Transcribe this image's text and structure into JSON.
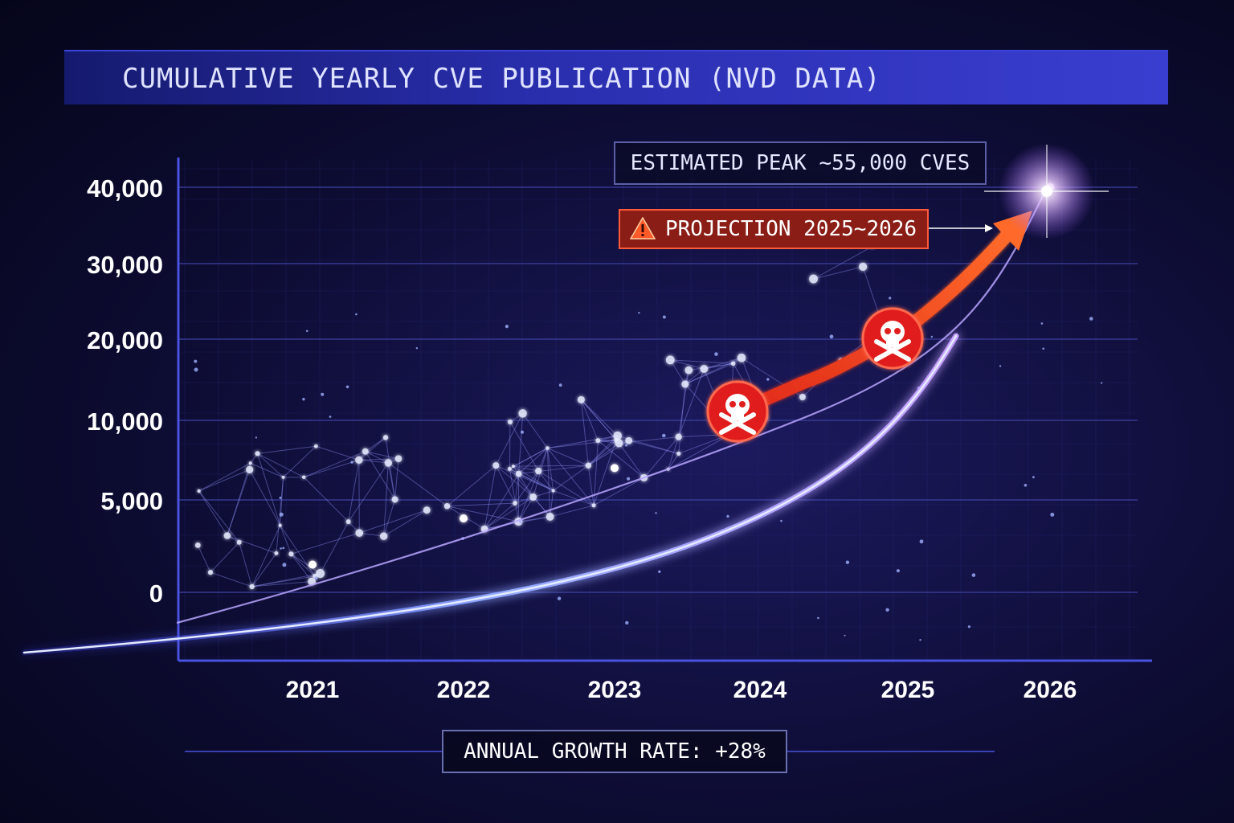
{
  "chart_data": {
    "type": "line",
    "title": "CUMULATIVE YEARLY CVE PUBLICATION (NVD DATA)",
    "xlabel": "",
    "ylabel": "",
    "categories": [
      "2021",
      "2022",
      "2023",
      "2024",
      "2025",
      "2026"
    ],
    "y_ticks": [
      "0",
      "5,000",
      "10,000",
      "20,000",
      "30,000",
      "40,000"
    ],
    "series": [
      {
        "values": [
          1500,
          4000,
          7000,
          11000,
          20000,
          40000
        ]
      }
    ],
    "projection_markers": [
      "2024",
      "2025"
    ],
    "annotations": {
      "peak": "ESTIMATED PEAK ~55,000 CVES",
      "projection": "PROJECTION 2025~2026",
      "growth": "ANNUAL GROWTH RATE: +28%"
    },
    "grid": true,
    "legend": "none",
    "colors": {
      "projection_arrow": "#ff3a1a",
      "curve_glow": "#8a7cff",
      "marker": "#e01e1e",
      "grid": "#3a3e9a"
    }
  }
}
